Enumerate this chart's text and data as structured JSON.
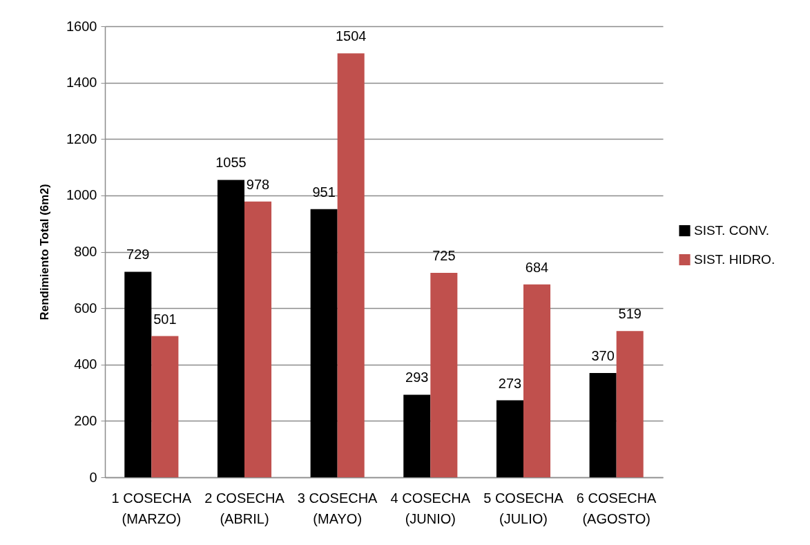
{
  "chart_data": {
    "type": "bar",
    "ylabel": "Rendimiento Total (6m2)",
    "categories": [
      "1 COSECHA\n(MARZO)",
      "2 COSECHA\n(ABRIL)",
      "3 COSECHA\n(MAYO)",
      "4 COSECHA\n(JUNIO)",
      "5 COSECHA\n(JULIO)",
      "6 COSECHA\n(AGOSTO)"
    ],
    "series": [
      {
        "name": "SIST. CONV.",
        "color": "#000000",
        "values": [
          729,
          1055,
          951,
          293,
          273,
          370
        ]
      },
      {
        "name": "SIST. HIDRO.",
        "color": "#c0504d",
        "values": [
          501,
          978,
          1504,
          725,
          684,
          519
        ]
      }
    ],
    "ylim": [
      0,
      1600
    ],
    "yticks": [
      0,
      200,
      400,
      600,
      800,
      1000,
      1200,
      1400,
      1600
    ],
    "grid": "y",
    "legend": "right",
    "data_labels": true
  }
}
